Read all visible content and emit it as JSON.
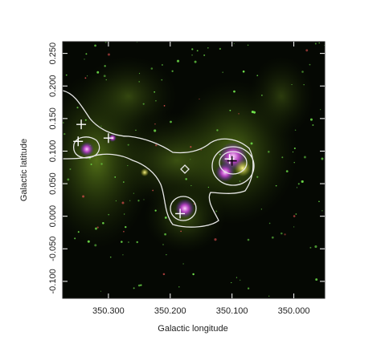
{
  "chart_data": {
    "type": "image",
    "xlabel": "Galactic longitude",
    "ylabel": "Galactic latitude",
    "xlim": [
      350.374,
      349.95
    ],
    "ylim": [
      -0.126,
      0.268
    ],
    "xticks": [
      {
        "value": 350.3,
        "label": "350.300"
      },
      {
        "value": 350.2,
        "label": "350.200"
      },
      {
        "value": 350.1,
        "label": "350.100"
      },
      {
        "value": 350.0,
        "label": "350.000"
      }
    ],
    "yticks": [
      {
        "value": -0.1,
        "label": "-0.100"
      },
      {
        "value": -0.05,
        "label": "-0.050"
      },
      {
        "value": 0,
        "label": "0.000"
      },
      {
        "value": 0.05,
        "label": "0.050"
      },
      {
        "value": 0.1,
        "label": "0.100"
      },
      {
        "value": 0.15,
        "label": "0.150"
      },
      {
        "value": 0.2,
        "label": "0.200"
      },
      {
        "value": 0.25,
        "label": "0.250"
      }
    ],
    "markers": [
      {
        "color": "#ffffff",
        "x": [
          350.344,
          350.349,
          350.3,
          350.184,
          350.104
        ],
        "y": [
          0.141,
          0.115,
          0.12,
          0.004,
          0.088
        ]
      },
      {
        "color": "#000000",
        "x": [
          350.1
        ],
        "y": [
          0.085
        ]
      }
    ]
  }
}
